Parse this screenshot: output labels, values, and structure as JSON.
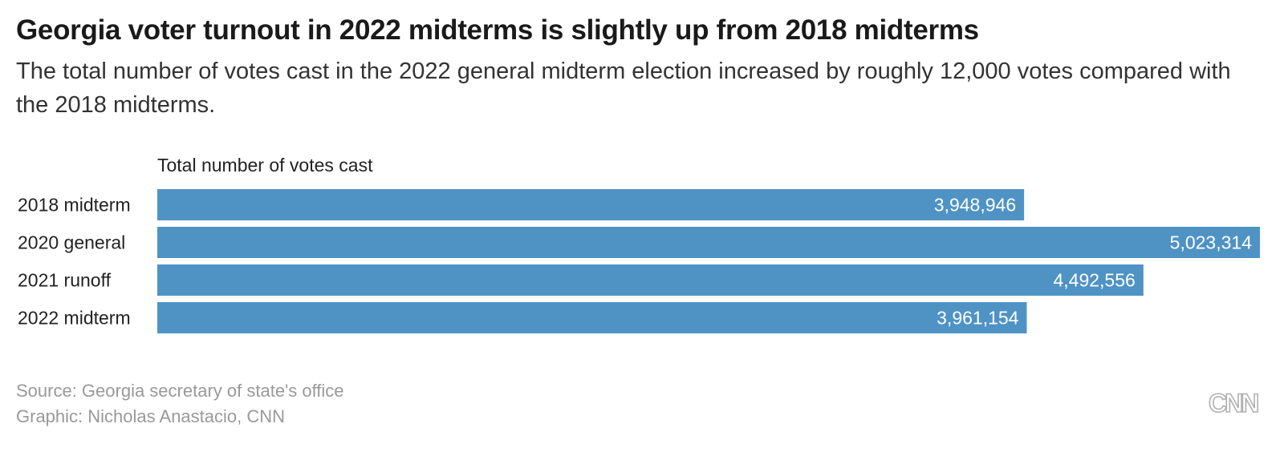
{
  "header": {
    "title": "Georgia voter turnout in 2022 midterms is slightly up from 2018 midterms",
    "subtitle": "The total number of votes cast in the 2022 general midterm election increased by roughly 12,000 votes compared with the 2018 midterms."
  },
  "chart_data": {
    "type": "bar",
    "orientation": "horizontal",
    "title": "",
    "series_label": "Total number of votes cast",
    "categories": [
      "2018 midterm",
      "2020 general",
      "2021 runoff",
      "2022 midterm"
    ],
    "values": [
      3948946,
      5023314,
      4492556,
      3961154
    ],
    "value_labels": [
      "3,948,946",
      "5,023,314",
      "4,492,556",
      "3,961,154"
    ],
    "xlim": [
      0,
      5023314
    ],
    "grid": false,
    "bar_color": "#4f93c5",
    "label_color": "#ffffff"
  },
  "footer": {
    "source": "Source: Georgia secretary of state's office",
    "credit": "Graphic: Nicholas Anastacio, CNN",
    "logo_text": "CNN"
  }
}
